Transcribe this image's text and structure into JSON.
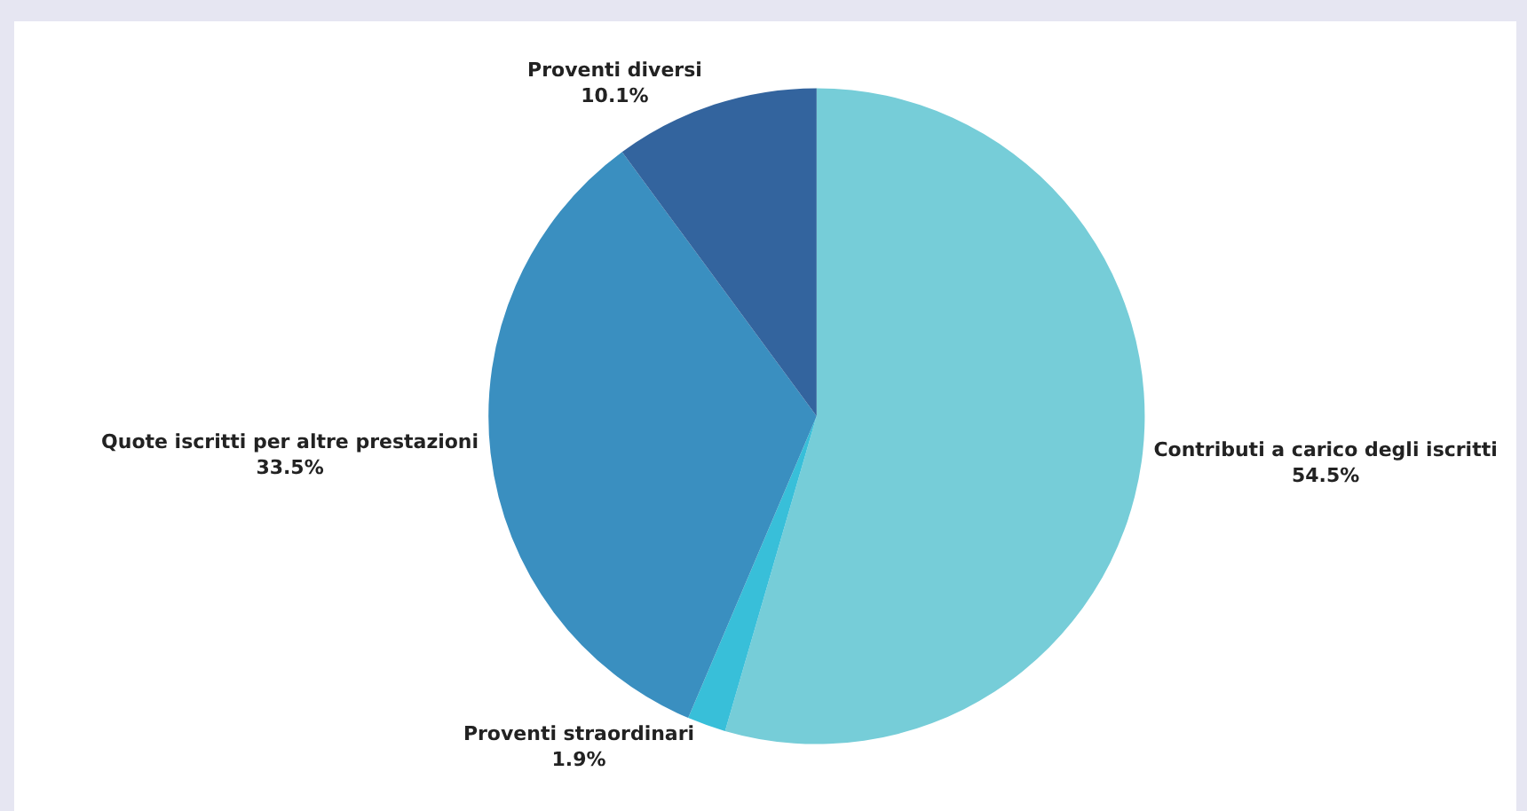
{
  "chart_data": {
    "type": "pie",
    "categories": [
      "Contributi a carico degli iscritti",
      "Proventi straordinari",
      "Quote iscritti per altre prestazioni",
      "Proventi diversi"
    ],
    "values": [
      54.5,
      1.9,
      33.5,
      10.1
    ],
    "value_labels": [
      "54.5%",
      "1.9%",
      "33.5%",
      "10.1%"
    ],
    "colors": [
      "#76cdd8",
      "#38bfd9",
      "#3a8fc0",
      "#33649e"
    ],
    "legend": false
  }
}
